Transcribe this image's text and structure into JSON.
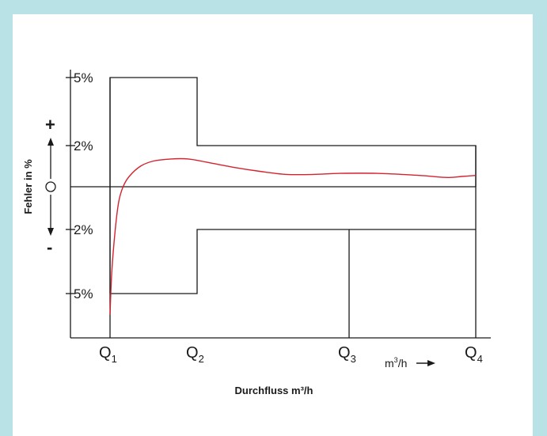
{
  "chart_data": {
    "type": "line",
    "ylabel": "Fehler in %",
    "xlabel": "Durchfluss m³/h",
    "x_categories": [
      {
        "main": "Q",
        "sub": "1"
      },
      {
        "main": "Q",
        "sub": "2"
      },
      {
        "main": "Q",
        "sub": "3"
      },
      {
        "main": "Q",
        "sub": "4"
      }
    ],
    "x_unit": {
      "base": "m",
      "sup": "3",
      "rest": "/h"
    },
    "y_ticks": [
      {
        "value": 5,
        "label": "5%"
      },
      {
        "value": 2,
        "label": "2%"
      },
      {
        "value": -2,
        "label": "2%"
      },
      {
        "value": -5,
        "label": "5%"
      }
    ],
    "y_signs": {
      "plus": "+",
      "minus": "-"
    },
    "ylim": [
      -7,
      6
    ],
    "x_domain": [
      0,
      4.5
    ],
    "q_positions": [
      0.5,
      1.5,
      3.2,
      4.1
    ],
    "upper_limit": [
      {
        "x": 0.5,
        "y": -5
      },
      {
        "x": 0.5,
        "y": 5
      },
      {
        "x": 1.5,
        "y": 5
      },
      {
        "x": 1.5,
        "y": 2
      },
      {
        "x": 4.1,
        "y": 2
      },
      {
        "x": 4.1,
        "y": 0
      }
    ],
    "lower_limit": [
      {
        "x": 0.5,
        "y": -5
      },
      {
        "x": 1.5,
        "y": -5
      },
      {
        "x": 1.5,
        "y": -2
      },
      {
        "x": 4.1,
        "y": -2
      }
    ],
    "error_curve": [
      [
        0.5,
        -6.0
      ],
      [
        0.52,
        -4.0
      ],
      [
        0.56,
        -2.0
      ],
      [
        0.6,
        -0.7
      ],
      [
        0.65,
        0.0
      ],
      [
        0.72,
        0.5
      ],
      [
        0.85,
        1.0
      ],
      [
        1.0,
        1.25
      ],
      [
        1.2,
        1.35
      ],
      [
        1.4,
        1.35
      ],
      [
        1.6,
        1.2
      ],
      [
        1.9,
        0.95
      ],
      [
        2.2,
        0.75
      ],
      [
        2.5,
        0.6
      ],
      [
        2.8,
        0.6
      ],
      [
        3.1,
        0.65
      ],
      [
        3.4,
        0.65
      ],
      [
        3.7,
        0.55
      ],
      [
        3.9,
        0.45
      ],
      [
        4.0,
        0.5
      ],
      [
        4.1,
        0.55
      ]
    ],
    "colors": {
      "curve": "#d4232f",
      "lines": "#1a1a1a",
      "border": "#b9e2e6"
    }
  }
}
